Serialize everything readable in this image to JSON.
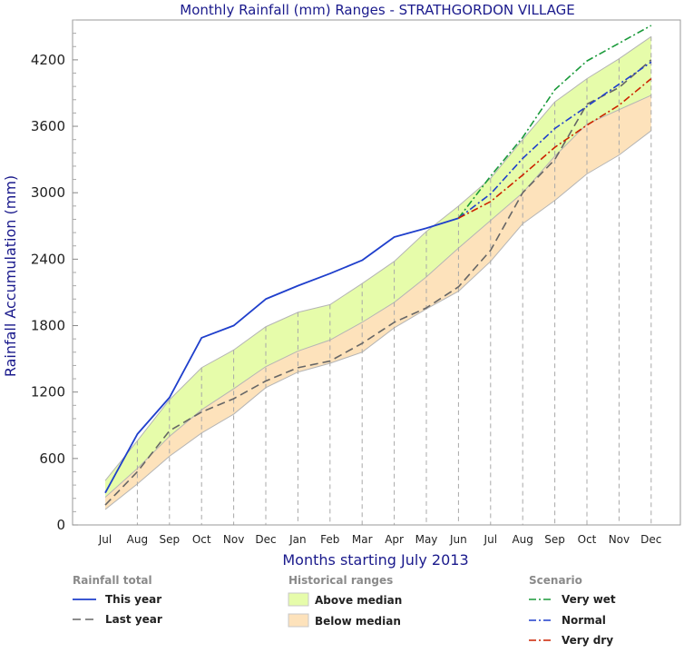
{
  "chart_data": {
    "type": "line",
    "title": "Monthly Rainfall (mm) Ranges - STRATHGORDON VILLAGE",
    "xlabel": "Months starting July 2013",
    "ylabel": "Rainfall Accumulation (mm)",
    "ylim": [
      0,
      4560
    ],
    "yticks": [
      0,
      600,
      1200,
      1800,
      2400,
      3000,
      3600,
      4200
    ],
    "categories": [
      "Jul",
      "Aug",
      "Sep",
      "Oct",
      "Nov",
      "Dec",
      "Jan",
      "Feb",
      "Mar",
      "Apr",
      "May",
      "Jun",
      "Jul",
      "Aug",
      "Sep",
      "Oct",
      "Nov",
      "Dec"
    ],
    "grid": "minor y ticks, dashed vertical month lines",
    "legend_groups": {
      "rainfall_total": "Rainfall total",
      "historical_ranges": "Historical ranges",
      "scenario": "Scenario"
    },
    "bands": {
      "lower": [
        140,
        370,
        620,
        830,
        1000,
        1240,
        1380,
        1460,
        1560,
        1780,
        1950,
        2110,
        2380,
        2720,
        2930,
        3170,
        3340,
        3560
      ],
      "median": [
        250,
        510,
        800,
        1040,
        1230,
        1430,
        1570,
        1670,
        1830,
        2010,
        2240,
        2500,
        2750,
        3000,
        3330,
        3620,
        3750,
        3880
      ],
      "upper": [
        400,
        760,
        1130,
        1420,
        1580,
        1790,
        1920,
        1990,
        2180,
        2380,
        2650,
        2880,
        3130,
        3480,
        3820,
        4030,
        4210,
        4410
      ],
      "above_label": "Above median",
      "below_label": "Below median",
      "above_color": "#e6fcaa",
      "below_color": "#fde2bb"
    },
    "series": [
      {
        "name": "This year",
        "style": "solid",
        "color": "#1f3fcc",
        "x": [
          0,
          1,
          2,
          3,
          4,
          5,
          6,
          7,
          8,
          9,
          10,
          11
        ],
        "values": [
          290,
          820,
          1150,
          1690,
          1800,
          2040,
          2160,
          2270,
          2390,
          2600,
          2680,
          2770
        ]
      },
      {
        "name": "Last year",
        "style": "dash",
        "color": "#666666",
        "x": [
          0,
          1,
          2,
          3,
          4,
          5,
          6,
          7,
          8,
          9,
          10,
          11,
          12,
          13,
          14,
          15,
          16,
          17
        ],
        "values": [
          180,
          480,
          850,
          1020,
          1140,
          1300,
          1420,
          1480,
          1640,
          1830,
          1960,
          2150,
          2480,
          3000,
          3300,
          3800,
          3950,
          4200
        ]
      },
      {
        "name": "Very wet",
        "style": "dashdot",
        "color": "#1a9a3a",
        "x": [
          11,
          12,
          13,
          14,
          15,
          16,
          17
        ],
        "values": [
          2770,
          3150,
          3500,
          3930,
          4190,
          4350,
          4510
        ]
      },
      {
        "name": "Normal",
        "style": "dashdot",
        "color": "#1f3fcc",
        "x": [
          11,
          12,
          13,
          14,
          15,
          16,
          17
        ],
        "values": [
          2770,
          2990,
          3310,
          3580,
          3780,
          3980,
          4180
        ]
      },
      {
        "name": "Very dry",
        "style": "dashdot",
        "color": "#cc2200",
        "x": [
          11,
          12,
          13,
          14,
          15,
          16,
          17
        ],
        "values": [
          2770,
          2920,
          3160,
          3410,
          3610,
          3790,
          4030
        ]
      }
    ]
  }
}
